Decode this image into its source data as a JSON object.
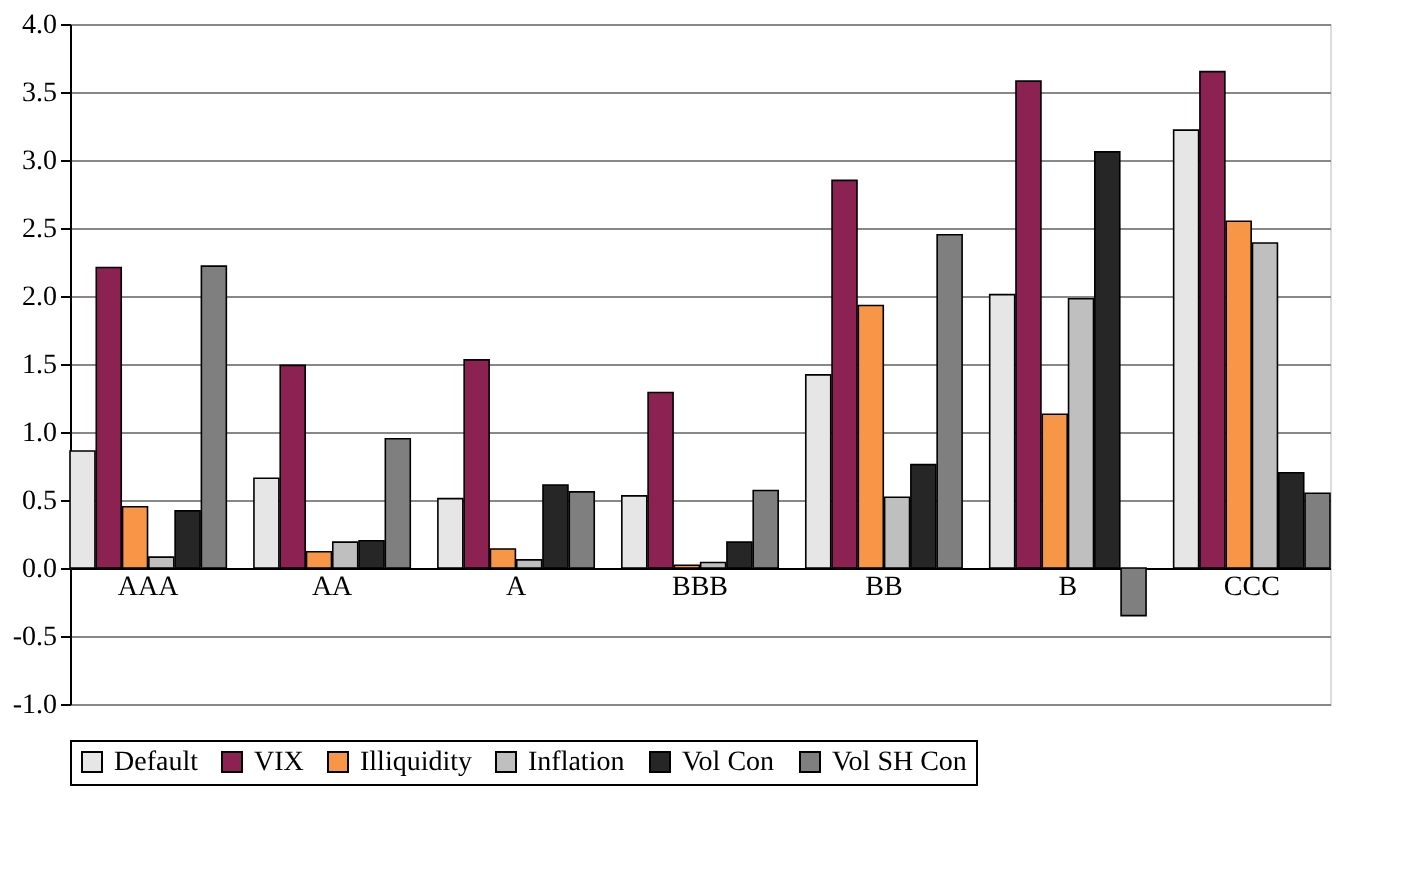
{
  "chart_data": {
    "type": "bar",
    "categories": [
      "AAA",
      "AA",
      "A",
      "BBB",
      "BB",
      "B",
      "CCC"
    ],
    "series": [
      {
        "name": "Default",
        "color": "#e6e6e6",
        "values": [
          0.86,
          0.66,
          0.51,
          0.53,
          1.42,
          2.01,
          3.22
        ]
      },
      {
        "name": "VIX",
        "color": "#8b2252",
        "values": [
          2.21,
          1.49,
          1.53,
          1.29,
          2.85,
          3.58,
          3.65
        ]
      },
      {
        "name": "Illiquidity",
        "color": "#f79646",
        "values": [
          0.45,
          0.12,
          0.14,
          0.02,
          1.93,
          1.13,
          2.55
        ]
      },
      {
        "name": "Inflation",
        "color": "#bfbfbf",
        "values": [
          0.08,
          0.19,
          0.06,
          0.04,
          0.52,
          1.98,
          2.39
        ]
      },
      {
        "name": "Vol Con",
        "color": "#262626",
        "values": [
          0.42,
          0.2,
          0.61,
          0.19,
          0.76,
          3.06,
          0.7
        ]
      },
      {
        "name": "Vol SH Con",
        "color": "#7f7f7f",
        "values": [
          2.22,
          0.95,
          0.56,
          0.57,
          2.45,
          -0.35,
          0.55
        ]
      }
    ],
    "ylim": [
      -1,
      4
    ],
    "yticks": [
      {
        "value": -1,
        "label": "-1.0"
      },
      {
        "value": -0.5,
        "label": "-0.5"
      },
      {
        "value": 0,
        "label": "0.0"
      },
      {
        "value": 0.5,
        "label": "0.5"
      },
      {
        "value": 1,
        "label": "1.0"
      },
      {
        "value": 1.5,
        "label": "1.5"
      },
      {
        "value": 2,
        "label": "2.0"
      },
      {
        "value": 2.5,
        "label": "2.5"
      },
      {
        "value": 3,
        "label": "3.0"
      },
      {
        "value": 3.5,
        "label": "3.5"
      },
      {
        "value": 4,
        "label": "4.0"
      }
    ],
    "grid": "y",
    "legend": "bottom"
  }
}
